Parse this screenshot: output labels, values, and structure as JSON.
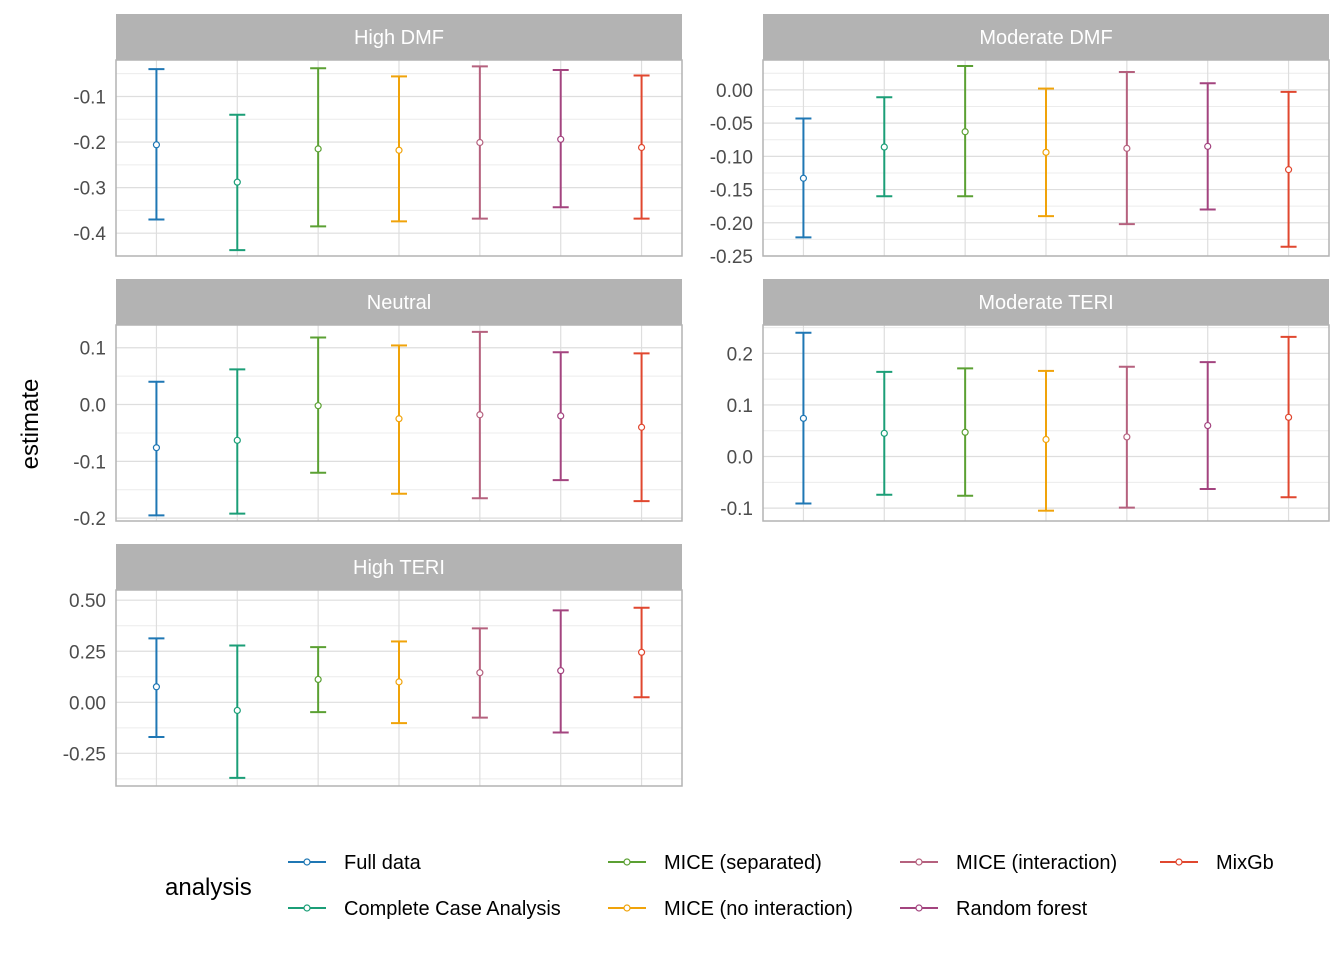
{
  "chart_data": {
    "type": "errorbar",
    "ylabel": "estimate",
    "legend": {
      "title": "analysis",
      "placement": "bottom",
      "entries": [
        {
          "label": "Full data",
          "color": "#1f77b4"
        },
        {
          "label": "Complete Case Analysis",
          "color": "#1b9e77"
        },
        {
          "label": "MICE (separated)",
          "color": "#5ba033"
        },
        {
          "label": "MICE (no interaction)",
          "color": "#f0a30a"
        },
        {
          "label": "MICE (interaction)",
          "color": "#b5617e"
        },
        {
          "label": "Random forest",
          "color": "#a3447f"
        },
        {
          "label": "MixGb",
          "color": "#e0472f"
        }
      ]
    },
    "series_order": [
      "Full data",
      "Complete Case Analysis",
      "MICE (separated)",
      "MICE (no interaction)",
      "MICE (interaction)",
      "Random forest",
      "MixGb"
    ],
    "panels": [
      {
        "title": "High DMF",
        "ylim": [
          -0.45,
          -0.02
        ],
        "ticks": [
          -0.1,
          -0.2,
          -0.3,
          -0.4
        ],
        "tick_labels": [
          "-0.1",
          "-0.2",
          "-0.3",
          "-0.4"
        ],
        "estimates": [
          -0.206,
          -0.288,
          -0.215,
          -0.218,
          -0.201,
          -0.194,
          -0.212
        ],
        "lower": [
          -0.37,
          -0.437,
          -0.385,
          -0.374,
          -0.368,
          -0.343,
          -0.368
        ],
        "upper": [
          -0.04,
          -0.14,
          -0.038,
          -0.056,
          -0.034,
          -0.042,
          -0.054
        ]
      },
      {
        "title": "Moderate DMF",
        "ylim": [
          -0.25,
          0.045
        ],
        "ticks": [
          0.0,
          -0.05,
          -0.1,
          -0.15,
          -0.2,
          -0.25
        ],
        "tick_labels": [
          "0.00",
          "-0.05",
          "-0.10",
          "-0.15",
          "-0.20",
          "-0.25"
        ],
        "estimates": [
          -0.133,
          -0.086,
          -0.063,
          -0.094,
          -0.088,
          -0.085,
          -0.12
        ],
        "lower": [
          -0.222,
          -0.16,
          -0.16,
          -0.19,
          -0.202,
          -0.18,
          -0.236
        ],
        "upper": [
          -0.043,
          -0.011,
          0.036,
          0.002,
          0.027,
          0.01,
          -0.003
        ]
      },
      {
        "title": "Neutral",
        "ylim": [
          -0.205,
          0.14
        ],
        "ticks": [
          0.1,
          0.0,
          -0.1,
          -0.2
        ],
        "tick_labels": [
          "0.1",
          "0.0",
          "-0.1",
          "-0.2"
        ],
        "estimates": [
          -0.076,
          -0.063,
          -0.002,
          -0.025,
          -0.018,
          -0.02,
          -0.04
        ],
        "lower": [
          -0.195,
          -0.192,
          -0.12,
          -0.157,
          -0.165,
          -0.133,
          -0.17
        ],
        "upper": [
          0.04,
          0.062,
          0.118,
          0.104,
          0.128,
          0.092,
          0.09
        ]
      },
      {
        "title": "Moderate TERI",
        "ylim": [
          -0.125,
          0.255
        ],
        "ticks": [
          0.2,
          0.1,
          0.0,
          -0.1
        ],
        "tick_labels": [
          "0.2",
          "0.1",
          "0.0",
          "-0.1"
        ],
        "estimates": [
          0.074,
          0.045,
          0.047,
          0.033,
          0.038,
          0.06,
          0.076
        ],
        "lower": [
          -0.091,
          -0.074,
          -0.076,
          -0.105,
          -0.099,
          -0.063,
          -0.079
        ],
        "upper": [
          0.24,
          0.164,
          0.171,
          0.166,
          0.174,
          0.183,
          0.232
        ]
      },
      {
        "title": "High TERI",
        "ylim": [
          -0.41,
          0.55
        ],
        "ticks": [
          0.5,
          0.25,
          0.0,
          -0.25
        ],
        "tick_labels": [
          "0.50",
          "0.25",
          "0.00",
          "-0.25"
        ],
        "estimates": [
          0.076,
          -0.04,
          0.112,
          0.1,
          0.145,
          0.155,
          0.245
        ],
        "lower": [
          -0.17,
          -0.37,
          -0.048,
          -0.102,
          -0.075,
          -0.148,
          0.025
        ],
        "upper": [
          0.313,
          0.278,
          0.27,
          0.298,
          0.362,
          0.45,
          0.463
        ]
      }
    ]
  }
}
